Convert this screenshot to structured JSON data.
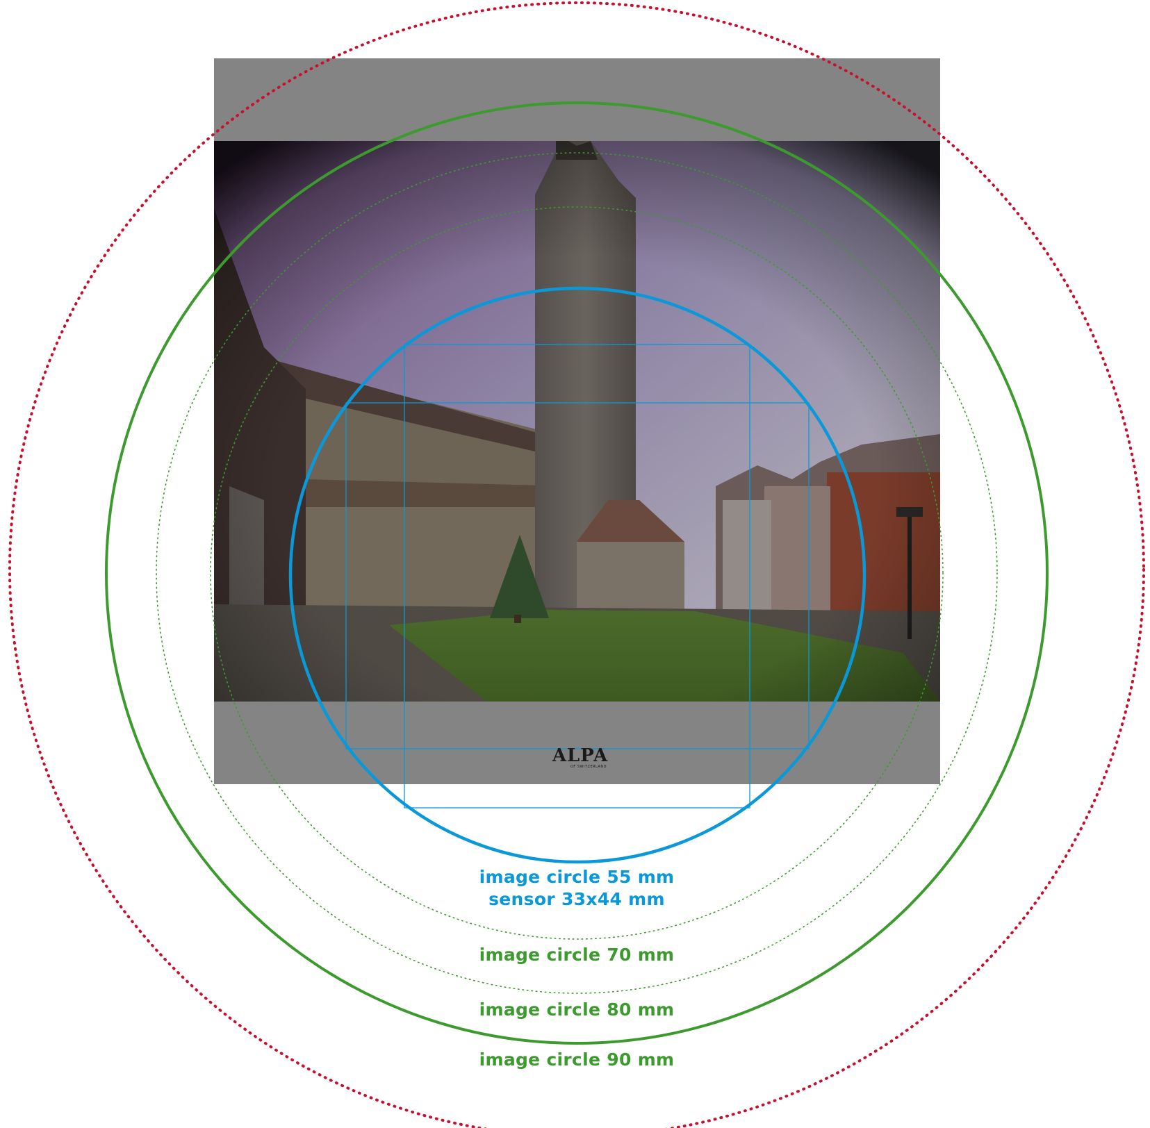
{
  "colors": {
    "red_dotted": "#c8102e",
    "green": "#3d9a2e",
    "green_dotted": "#3d9a2e",
    "blue": "#0a98d8",
    "frame_gray": "#848484"
  },
  "logo": {
    "text": "ALPA",
    "subtext": "OF SWITZERLAND"
  },
  "labels": {
    "blue_line1": "image circle 55 mm",
    "blue_line2": "sensor 33x44 mm",
    "green_70": "image circle 70 mm",
    "green_80": "image circle 80 mm",
    "green_90": "image circle 90 mm"
  }
}
